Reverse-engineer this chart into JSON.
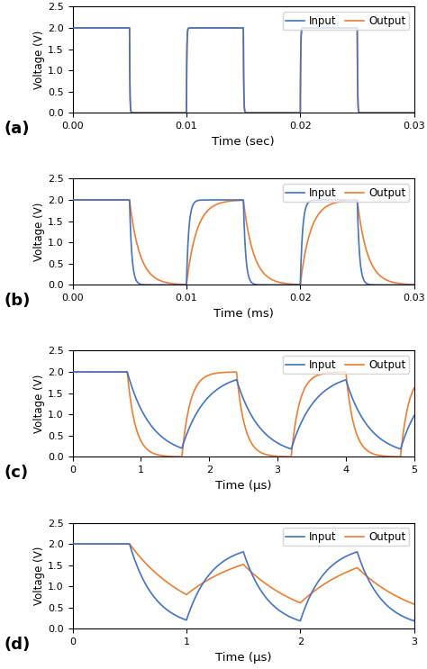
{
  "subplots": [
    {
      "label": "(a)",
      "xlabel": "Time (sec)",
      "ylabel": "Voltage (V)",
      "xlim": [
        0,
        0.03
      ],
      "ylim": [
        0,
        2.5
      ],
      "xticks": [
        0,
        0.01,
        0.02,
        0.03
      ],
      "yticks": [
        0,
        0.5,
        1,
        1.5,
        2,
        2.5
      ],
      "period": 0.01,
      "duty": 0.5,
      "tau_input": 3e-05,
      "tau_output": 3e-05,
      "phase": 0.0
    },
    {
      "label": "(b)",
      "xlabel": "Time (ms)",
      "ylabel": "Voltage (V)",
      "xlim": [
        0,
        0.03
      ],
      "ylim": [
        0,
        2.5
      ],
      "xticks": [
        0,
        0.01,
        0.02,
        0.03
      ],
      "yticks": [
        0,
        0.5,
        1,
        1.5,
        2,
        2.5
      ],
      "period": 0.01,
      "duty": 0.5,
      "tau_input": 0.0002,
      "tau_output": 0.0009,
      "phase": 0.0
    },
    {
      "label": "(c)",
      "xlabel": "Time (μs)",
      "ylabel": "Voltage (V)",
      "xlim": [
        0,
        5
      ],
      "ylim": [
        0,
        2.5
      ],
      "xticks": [
        0,
        1,
        2,
        3,
        4,
        5
      ],
      "yticks": [
        0,
        0.5,
        1,
        1.5,
        2,
        2.5
      ],
      "period": 1.6,
      "duty": 0.5,
      "tau_input": 0.35,
      "tau_output": 0.12,
      "phase": 0.0
    },
    {
      "label": "(d)",
      "xlabel": "Time (μs)",
      "ylabel": "Voltage (V)",
      "xlim": [
        0,
        3
      ],
      "ylim": [
        0,
        2.5
      ],
      "xticks": [
        0,
        1,
        2,
        3
      ],
      "yticks": [
        0,
        0.5,
        1,
        1.5,
        2,
        2.5
      ],
      "period": 1.0,
      "duty": 0.5,
      "tau_input": 0.22,
      "tau_output": 0.55,
      "phase": 0.0
    }
  ],
  "input_color": "#4472C4",
  "output_color": "#ED7D31",
  "legend_input": "Input",
  "legend_output": "Output",
  "figsize": [
    4.74,
    7.43
  ],
  "dpi": 100
}
